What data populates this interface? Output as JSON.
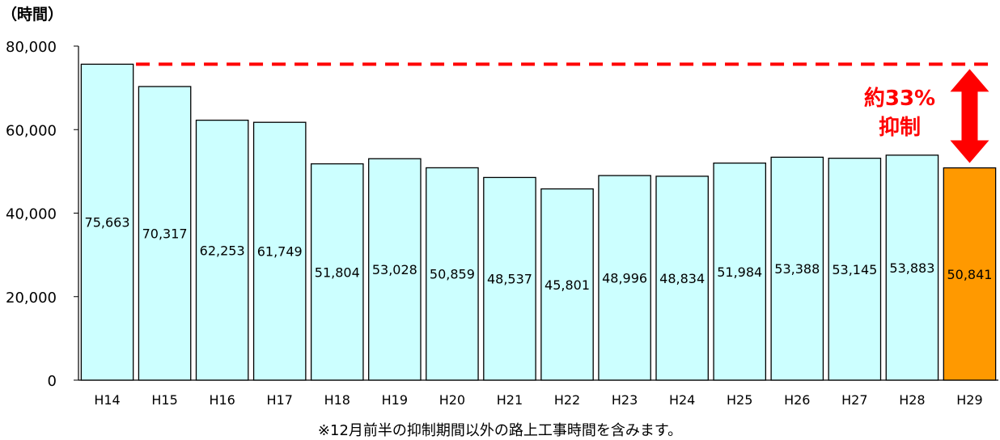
{
  "chart_data": {
    "type": "bar",
    "unit_label": "（時間）",
    "categories": [
      "H14",
      "H15",
      "H16",
      "H17",
      "H18",
      "H19",
      "H20",
      "H21",
      "H22",
      "H23",
      "H24",
      "H25",
      "H26",
      "H27",
      "H28",
      "H29"
    ],
    "values": [
      75663,
      70317,
      62253,
      61749,
      51804,
      53028,
      50859,
      48537,
      45801,
      48996,
      48834,
      51984,
      53388,
      53145,
      53883,
      50841
    ],
    "value_labels": [
      "75,663",
      "70,317",
      "62,253",
      "61,749",
      "51,804",
      "53,028",
      "50,859",
      "48,537",
      "45,801",
      "48,996",
      "48,834",
      "51,984",
      "53,388",
      "53,145",
      "53,883",
      "50,841"
    ],
    "ylim": [
      0,
      80000
    ],
    "yticks": [
      0,
      20000,
      40000,
      60000,
      80000
    ],
    "ytick_labels": [
      "0",
      "20,000",
      "40,000",
      "60,000",
      "80,000"
    ],
    "grid": false,
    "highlight_index": 15,
    "colors": {
      "bar": "#ccffff",
      "bar_highlight": "#ff9900",
      "annotation": "#ff0000",
      "reference_line": "#ff0000"
    },
    "reference_value": 75663,
    "annotation": {
      "line1": "約33%",
      "line2": "抑制"
    },
    "footnote": "※12月前半の抑制期間以外の路上工事時間を含みます。"
  }
}
